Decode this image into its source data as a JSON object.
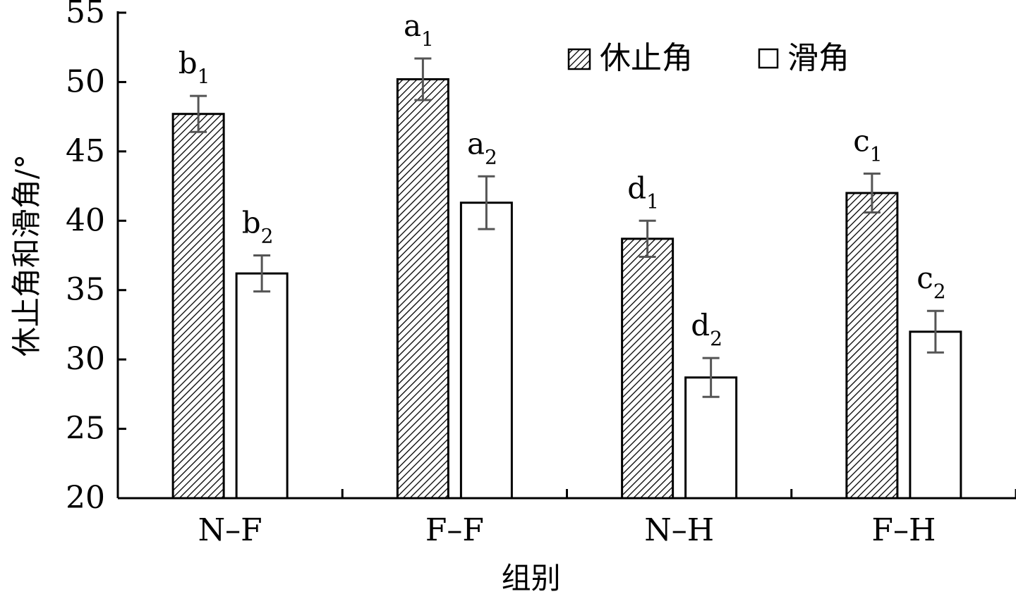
{
  "chart_data": {
    "type": "bar",
    "categories": [
      "N–F",
      "F–F",
      "N–H",
      "F–H"
    ],
    "series": [
      {
        "name": "休止角",
        "style": "hatched",
        "values": [
          47.7,
          50.2,
          38.7,
          42.0
        ],
        "errors": [
          1.3,
          1.5,
          1.3,
          1.4
        ],
        "labels": [
          {
            "letter": "b",
            "sub": "1"
          },
          {
            "letter": "a",
            "sub": "1"
          },
          {
            "letter": "d",
            "sub": "1"
          },
          {
            "letter": "c",
            "sub": "1"
          }
        ]
      },
      {
        "name": "滑角",
        "style": "open",
        "values": [
          36.2,
          41.3,
          28.7,
          32.0
        ],
        "errors": [
          1.3,
          1.9,
          1.4,
          1.5
        ],
        "labels": [
          {
            "letter": "b",
            "sub": "2"
          },
          {
            "letter": "a",
            "sub": "2"
          },
          {
            "letter": "d",
            "sub": "2"
          },
          {
            "letter": "c",
            "sub": "2"
          }
        ]
      }
    ],
    "xlabel": "组别",
    "ylabel": "休止角和滑角/°",
    "ylim": [
      20,
      55
    ],
    "yticks": [
      20,
      25,
      30,
      35,
      40,
      45,
      50,
      55
    ],
    "legend": "top-right",
    "grid": false,
    "colors": {
      "axis": "#000000",
      "bar_stroke": "#000000",
      "hatch": "#000000",
      "error_bar": "#555555",
      "background": "#ffffff"
    }
  }
}
